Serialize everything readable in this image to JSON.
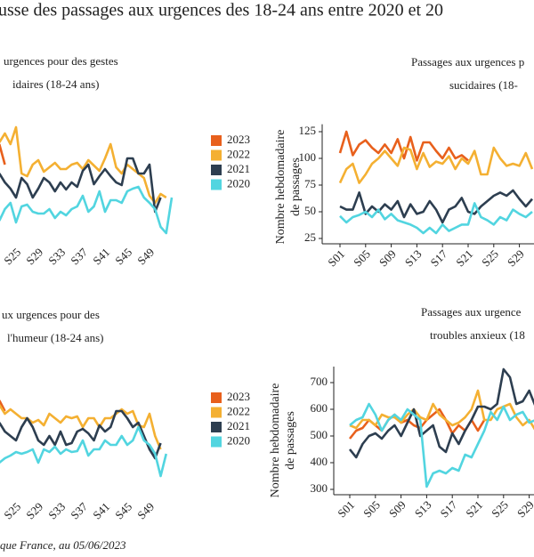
{
  "title": "usse des passages aux urgences des 18-24 ans entre 2020 et 20",
  "footnote": "que France, au 05/06/2023",
  "chart_data": [
    {
      "type": "line",
      "title": [
        "urgences pour des gestes",
        "idaires (18-24 ans)"
      ],
      "legend": true,
      "axes": false,
      "categories": [
        null,
        null,
        null,
        "S25",
        null,
        null,
        null,
        "S29",
        null,
        null,
        null,
        "S33",
        null,
        null,
        null,
        "S37",
        null,
        null,
        null,
        "S41",
        null,
        null,
        null,
        "S45",
        null,
        null,
        null,
        "S49",
        null,
        null,
        null,
        null
      ],
      "ylim": [
        0,
        140
      ],
      "series": [
        {
          "name": "2023",
          "color": "#e8601c",
          "values": [
            113,
            90,
            null,
            null,
            null,
            null,
            null,
            null,
            null,
            null,
            null,
            null,
            null,
            null,
            null,
            null,
            null,
            null,
            null,
            null,
            null,
            null,
            null,
            null,
            null,
            null,
            null,
            null,
            null,
            null,
            null,
            null
          ]
        },
        {
          "name": "2022",
          "color": "#f4b032",
          "values": [
            115,
            125,
            113,
            132,
            80,
            77,
            90,
            95,
            82,
            87,
            92,
            85,
            85,
            90,
            92,
            85,
            95,
            89,
            83,
            97,
            113,
            87,
            80,
            90,
            85,
            80,
            75,
            55,
            47,
            57,
            53,
            null
          ]
        },
        {
          "name": "2021",
          "color": "#2d3e50",
          "values": [
            80,
            70,
            63,
            53,
            75,
            68,
            53,
            63,
            75,
            70,
            60,
            70,
            62,
            70,
            65,
            83,
            90,
            68,
            77,
            85,
            77,
            70,
            67,
            97,
            97,
            80,
            80,
            90,
            37,
            53,
            null,
            null
          ]
        },
        {
          "name": "2020",
          "color": "#52d5e0",
          "values": [
            27,
            40,
            47,
            25,
            43,
            45,
            37,
            35,
            35,
            40,
            30,
            37,
            33,
            40,
            43,
            55,
            37,
            43,
            60,
            37,
            50,
            50,
            47,
            60,
            63,
            65,
            53,
            47,
            40,
            20,
            13,
            53
          ]
        }
      ]
    },
    {
      "type": "line",
      "title": [
        "Passages aux urgences p",
        "sucidaires (18-"
      ],
      "ylabel": [
        "Nombre hebdomadaire",
        "de passages"
      ],
      "legend": false,
      "axes": true,
      "categories": [
        "S01",
        null,
        null,
        null,
        "S05",
        null,
        null,
        null,
        "S09",
        null,
        null,
        null,
        "S13",
        null,
        null,
        null,
        "S17",
        null,
        null,
        null,
        "S21",
        null,
        null,
        null,
        "S25",
        null,
        null,
        null,
        "S29",
        null,
        null
      ],
      "ylim": [
        20,
        132
      ],
      "yticks": [
        25,
        50,
        75,
        100,
        125
      ],
      "series": [
        {
          "name": "2023",
          "color": "#e8601c",
          "values": [
            105,
            125,
            103,
            113,
            117,
            110,
            105,
            113,
            105,
            118,
            100,
            120,
            98,
            115,
            115,
            107,
            100,
            110,
            100,
            103,
            98,
            null,
            null,
            null,
            null,
            null,
            null,
            null,
            null,
            null,
            null
          ]
        },
        {
          "name": "2022",
          "color": "#f4b032",
          "values": [
            77,
            90,
            95,
            77,
            85,
            95,
            100,
            107,
            100,
            93,
            110,
            108,
            90,
            105,
            92,
            97,
            95,
            102,
            90,
            100,
            95,
            107,
            85,
            85,
            110,
            100,
            93,
            95,
            93,
            105,
            90
          ]
        },
        {
          "name": "2021",
          "color": "#2d3e50",
          "values": [
            55,
            52,
            52,
            68,
            48,
            55,
            50,
            57,
            52,
            60,
            45,
            57,
            48,
            50,
            60,
            52,
            40,
            52,
            55,
            63,
            50,
            48,
            55,
            60,
            65,
            68,
            65,
            70,
            62,
            55,
            62
          ]
        },
        {
          "name": "2020",
          "color": "#52d5e0",
          "values": [
            46,
            40,
            45,
            47,
            50,
            45,
            52,
            43,
            48,
            42,
            40,
            38,
            35,
            30,
            35,
            30,
            38,
            32,
            35,
            38,
            38,
            58,
            45,
            42,
            38,
            45,
            42,
            52,
            48,
            45,
            50
          ]
        }
      ]
    },
    {
      "type": "line",
      "title": [
        "ux urgences pour des",
        "l'humeur (18-24 ans)"
      ],
      "legend": true,
      "axes": false,
      "categories": [
        null,
        null,
        null,
        "S25",
        null,
        null,
        null,
        "S29",
        null,
        null,
        null,
        "S33",
        null,
        null,
        null,
        "S37",
        null,
        null,
        null,
        "S41",
        null,
        null,
        null,
        "S45",
        null,
        null,
        null,
        "S49",
        null,
        null,
        null,
        null
      ],
      "ylim": [
        0,
        120
      ],
      "series": [
        {
          "name": "2023",
          "color": "#e8601c",
          "values": [
            90,
            78,
            null,
            null,
            null,
            null,
            null,
            null,
            null,
            null,
            null,
            null,
            null,
            null,
            null,
            null,
            null,
            null,
            null,
            null,
            null,
            null,
            null,
            null,
            null,
            null,
            null,
            null,
            null,
            null,
            null,
            null
          ]
        },
        {
          "name": "2022",
          "color": "#f4b032",
          "values": [
            85,
            75,
            80,
            75,
            70,
            70,
            65,
            68,
            62,
            75,
            70,
            65,
            72,
            70,
            72,
            60,
            70,
            70,
            60,
            70,
            70,
            75,
            80,
            75,
            78,
            62,
            60,
            75,
            50,
            35,
            null,
            null
          ]
        },
        {
          "name": "2021",
          "color": "#2d3e50",
          "values": [
            65,
            55,
            50,
            45,
            60,
            70,
            60,
            45,
            40,
            50,
            40,
            55,
            40,
            42,
            55,
            58,
            53,
            45,
            62,
            55,
            60,
            78,
            78,
            70,
            60,
            65,
            50,
            35,
            25,
            42,
            null,
            null
          ]
        },
        {
          "name": "2020",
          "color": "#52d5e0",
          "values": [
            20,
            25,
            28,
            32,
            30,
            32,
            35,
            20,
            35,
            32,
            38,
            30,
            35,
            32,
            33,
            45,
            28,
            35,
            35,
            45,
            40,
            40,
            50,
            40,
            45,
            60,
            45,
            40,
            30,
            5,
            30,
            null
          ]
        }
      ]
    },
    {
      "type": "line",
      "title": [
        "Passages aux urgence",
        "troubles anxieux (18"
      ],
      "ylabel": [
        "Nombre hebdomadaire",
        "de passages"
      ],
      "legend": false,
      "axes": true,
      "categories": [
        "S01",
        null,
        null,
        null,
        "S05",
        null,
        null,
        null,
        "S09",
        null,
        null,
        null,
        "S13",
        null,
        null,
        null,
        "S17",
        null,
        null,
        null,
        "S21",
        null,
        null,
        null,
        "S25",
        null,
        null,
        null,
        "S29",
        null,
        null
      ],
      "ylim": [
        280,
        760
      ],
      "yticks": [
        300,
        400,
        500,
        600,
        700
      ],
      "series": [
        {
          "name": "2023",
          "color": "#e8601c",
          "values": [
            490,
            520,
            530,
            560,
            540,
            520,
            560,
            580,
            550,
            560,
            540,
            530,
            560,
            580,
            600,
            560,
            510,
            540,
            520,
            560,
            520,
            560,
            null,
            null,
            null,
            null,
            null,
            null,
            null,
            null,
            null
          ]
        },
        {
          "name": "2022",
          "color": "#f4b032",
          "values": [
            540,
            530,
            560,
            560,
            540,
            580,
            570,
            570,
            550,
            580,
            600,
            570,
            560,
            620,
            580,
            560,
            540,
            550,
            570,
            600,
            670,
            560,
            560,
            600,
            610,
            620,
            570,
            540,
            560,
            520,
            570
          ]
        },
        {
          "name": "2021",
          "color": "#2d3e50",
          "values": [
            450,
            420,
            470,
            500,
            510,
            490,
            520,
            540,
            500,
            550,
            600,
            500,
            520,
            540,
            460,
            440,
            510,
            470,
            520,
            560,
            610,
            610,
            600,
            620,
            750,
            720,
            620,
            630,
            670,
            610,
            620
          ]
        },
        {
          "name": "2020",
          "color": "#52d5e0",
          "values": [
            540,
            560,
            570,
            620,
            580,
            520,
            560,
            580,
            560,
            600,
            580,
            560,
            310,
            360,
            370,
            360,
            380,
            370,
            430,
            420,
            470,
            520,
            590,
            560,
            610,
            560,
            580,
            590,
            550,
            560,
            600
          ]
        }
      ]
    }
  ]
}
